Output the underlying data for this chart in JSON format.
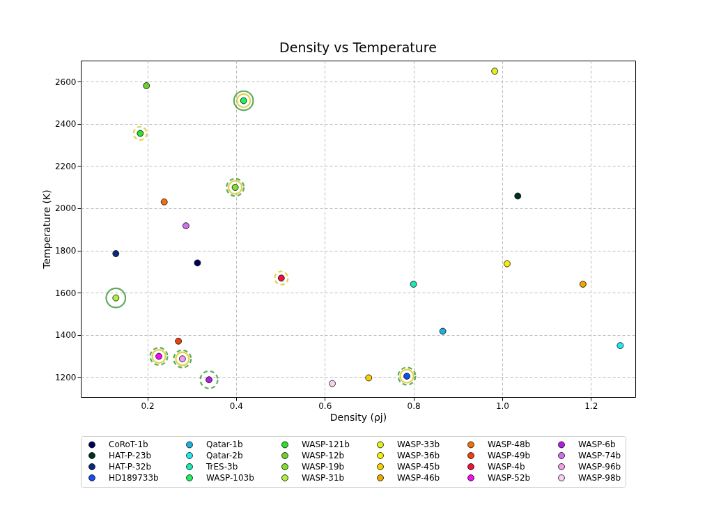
{
  "chart_data": {
    "type": "scatter",
    "title": "Density vs Temperature",
    "xlabel": "Density (ρj)",
    "ylabel": "Temperature (K)",
    "xlim": [
      0.05,
      1.3
    ],
    "ylim": [
      1105,
      2700
    ],
    "xticks": [
      0.2,
      0.4,
      0.6,
      0.8,
      {
        "value": 1,
        "label": "1.0"
      },
      1.2
    ],
    "yticks": [
      1200,
      1400,
      1600,
      1800,
      2000,
      2200,
      2400,
      2600
    ],
    "grid": true,
    "legend": "bottom",
    "marker": "circle",
    "series": [
      {
        "name": "CoRoT-1b",
        "color": "#000060",
        "x": [
          0.313
        ],
        "values": [
          1741
        ]
      },
      {
        "name": "HAT-P-23b",
        "color": "#003020",
        "x": [
          1.035
        ],
        "values": [
          2058
        ]
      },
      {
        "name": "HAT-P-32b",
        "color": "#0a2a80",
        "x": [
          0.129
        ],
        "values": [
          1785
        ]
      },
      {
        "name": "HD189733b",
        "color": "#1050f0",
        "x": [
          0.785
        ],
        "values": [
          1204
        ]
      },
      {
        "name": "Qatar-1b",
        "color": "#20b0e0",
        "x": [
          0.866
        ],
        "values": [
          1417
        ]
      },
      {
        "name": "Qatar-2b",
        "color": "#20e8f0",
        "x": [
          1.266
        ],
        "values": [
          1349
        ]
      },
      {
        "name": "TrES-3b",
        "color": "#20e8b0",
        "x": [
          0.8
        ],
        "values": [
          1640
        ]
      },
      {
        "name": "WASP-103b",
        "color": "#20f060",
        "x": [
          0.417
        ],
        "values": [
          2510
        ]
      },
      {
        "name": "WASP-121b",
        "color": "#30e030",
        "x": [
          0.184
        ],
        "values": [
          2355
        ]
      },
      {
        "name": "WASP-12b",
        "color": "#70d030",
        "x": [
          0.198
        ],
        "values": [
          2581
        ]
      },
      {
        "name": "WASP-19b",
        "color": "#80e030",
        "x": [
          0.398
        ],
        "values": [
          2099
        ]
      },
      {
        "name": "WASP-31b",
        "color": "#b0f040",
        "x": [
          0.129
        ],
        "values": [
          1575
        ]
      },
      {
        "name": "WASP-33b",
        "color": "#e0f020",
        "x": [
          0.983
        ],
        "values": [
          2650
        ]
      },
      {
        "name": "WASP-36b",
        "color": "#f8f000",
        "x": [
          1.011
        ],
        "values": [
          1737
        ]
      },
      {
        "name": "WASP-45b",
        "color": "#f8d000",
        "x": [
          0.699
        ],
        "values": [
          1196
        ]
      },
      {
        "name": "WASP-46b",
        "color": "#f0a800",
        "x": [
          1.182
        ],
        "values": [
          1640
        ]
      },
      {
        "name": "WASP-48b",
        "color": "#f07010",
        "x": [
          0.238
        ],
        "values": [
          2030
        ]
      },
      {
        "name": "WASP-49b",
        "color": "#f04010",
        "x": [
          0.27
        ],
        "values": [
          1370
        ]
      },
      {
        "name": "WASP-4b",
        "color": "#f01040",
        "x": [
          0.502
        ],
        "values": [
          1669
        ]
      },
      {
        "name": "WASP-52b",
        "color": "#f010f0",
        "x": [
          0.226
        ],
        "values": [
          1298
        ]
      },
      {
        "name": "WASP-6b",
        "color": "#b020e0",
        "x": [
          0.339
        ],
        "values": [
          1187
        ]
      },
      {
        "name": "WASP-74b",
        "color": "#d070f0",
        "x": [
          0.287
        ],
        "values": [
          1917
        ]
      },
      {
        "name": "WASP-96b",
        "color": "#f0a0e8",
        "x": [
          0.279
        ],
        "values": [
          1286
        ]
      },
      {
        "name": "WASP-98b",
        "color": "#f8d0f0",
        "x": [
          0.617
        ],
        "values": [
          1169
        ]
      },
      {
        "color": "#1a8a1a",
        "line_style": "solid",
        "x": [
          0.417,
          0.129
        ],
        "values": [
          2510,
          1575
        ]
      },
      {
        "color": "#1a8a1a",
        "line_style": "dashed",
        "x": [
          0.398,
          0.226,
          0.279,
          0.339,
          0.785
        ],
        "values": [
          2099,
          1298,
          1286,
          1187,
          1204
        ]
      },
      {
        "color": "#d4c000",
        "line_style": "solid",
        "x": [
          0.417,
          0.398,
          0.226,
          0.279,
          0.785
        ],
        "values": [
          2510,
          2099,
          1298,
          1286,
          1204
        ]
      },
      {
        "color": "#d4c000",
        "line_style": "dashed",
        "x": [
          0.184,
          0.502
        ],
        "values": [
          2355,
          1669
        ]
      }
    ]
  }
}
